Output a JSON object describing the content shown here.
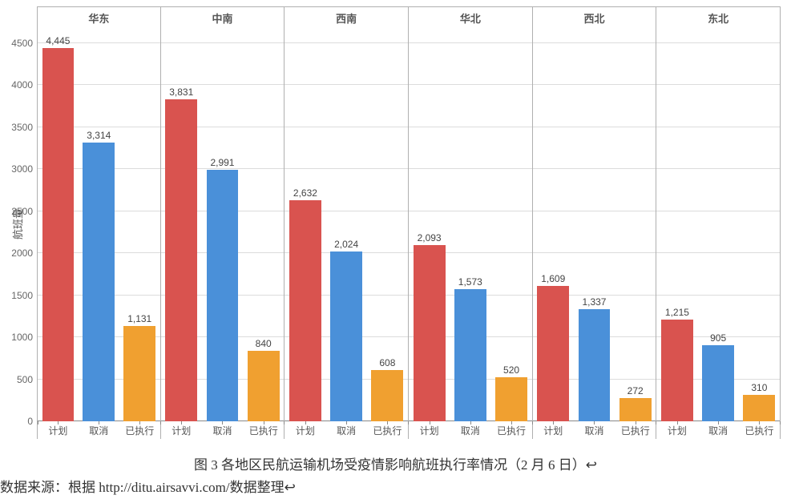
{
  "chart": {
    "type": "grouped-bar-faceted",
    "y_axis": {
      "title": "航班量",
      "min": 0,
      "max": 4700,
      "ticks": [
        0,
        500,
        1000,
        1500,
        2000,
        2500,
        3000,
        3500,
        4000,
        4500
      ],
      "tick_fontsize": 12,
      "title_fontsize": 13,
      "grid_color": "#dcdcdc"
    },
    "categories": [
      "计划",
      "取消",
      "已执行"
    ],
    "bar_colors": [
      "#d9534f",
      "#4a90d9",
      "#f0a030"
    ],
    "bar_width_pct": 26,
    "label_fontsize": 12,
    "panel_title_fontsize": 13,
    "background_color": "#ffffff",
    "panels": [
      {
        "title": "华东",
        "values": [
          4445,
          3314,
          1131
        ]
      },
      {
        "title": "中南",
        "values": [
          3831,
          2991,
          840
        ]
      },
      {
        "title": "西南",
        "values": [
          2632,
          2024,
          608
        ]
      },
      {
        "title": "华北",
        "values": [
          2093,
          1573,
          520
        ]
      },
      {
        "title": "西北",
        "values": [
          1609,
          1337,
          272
        ]
      },
      {
        "title": "东北",
        "values": [
          1215,
          905,
          310
        ]
      }
    ]
  },
  "caption": "图 3 各地区民航运输机场受疫情影响航班执行率情况（2 月 6 日）↩",
  "source": "数据来源：根据 http://ditu.airsavvi.com/数据整理↩"
}
